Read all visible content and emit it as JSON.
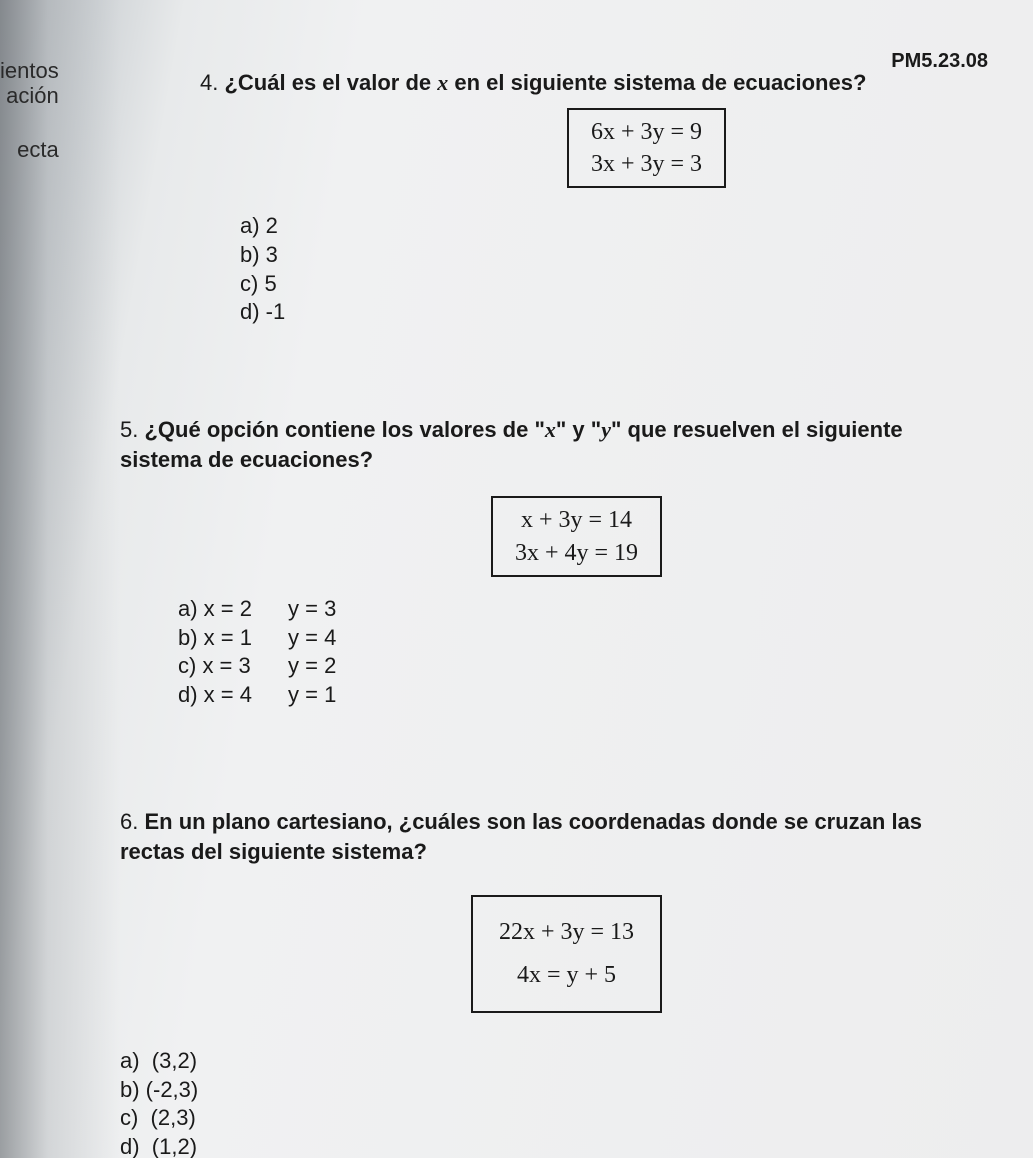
{
  "header": {
    "code": "PM5.23.08"
  },
  "margin": {
    "w1": "ientos",
    "w2": "ación",
    "w3": "ecta"
  },
  "q4": {
    "num": "4.",
    "prompt_a": "¿Cuál es el valor de ",
    "var": "x",
    "prompt_b": " en el siguiente sistema de ecuaciones?",
    "eq1": "6x + 3y = 9",
    "eq2": "3x + 3y = 3",
    "a": "a) 2",
    "b": "b) 3",
    "c": "c) 5",
    "d": "d) -1"
  },
  "q5": {
    "num": "5.",
    "prompt_a": "¿Qué opción contiene los valores de \"",
    "varx": "x",
    "mid": "\" y \"",
    "vary": "y",
    "prompt_b": "\" que resuelven el siguiente sistema de ecuaciones?",
    "eq1": "x + 3y = 14",
    "eq2": "3x + 4y = 19",
    "a_l": "a) x = 2",
    "a_r": "y = 3",
    "b_l": "b) x = 1",
    "b_r": "y = 4",
    "c_l": "c) x = 3",
    "c_r": "y = 2",
    "d_l": "d) x = 4",
    "d_r": "y = 1"
  },
  "q6": {
    "num": "6.",
    "prompt": "En un plano cartesiano, ¿cuáles son las coordenadas donde se cruzan las rectas del siguiente sistema?",
    "eq1": "22x + 3y = 13",
    "eq2": "4x = y + 5",
    "a": "a)  (3,2)",
    "b": "b) (-2,3)",
    "c": "c)  (2,3)",
    "d": "d)  (1,2)"
  }
}
